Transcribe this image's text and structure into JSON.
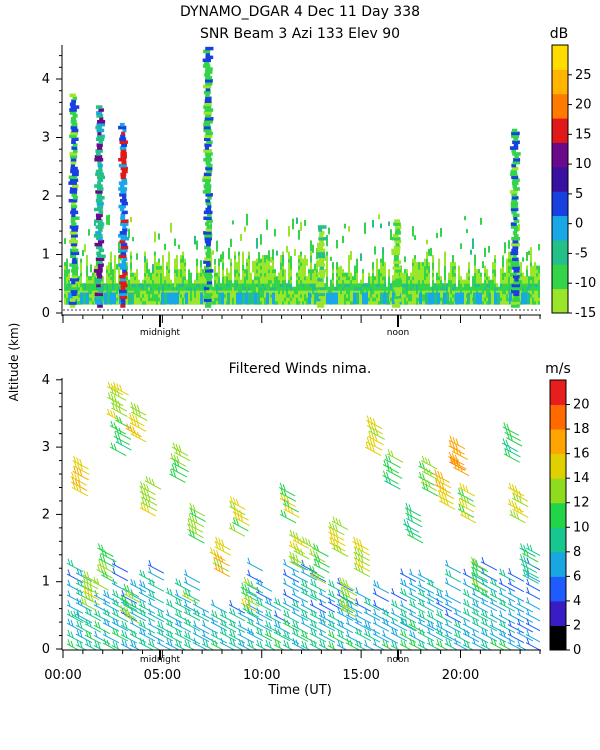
{
  "header": {
    "line1": "DYNAMO_DGAR   4 Dec 11 Day 338",
    "line2": "SNR Beam 3 Azi 133 Elev 90"
  },
  "shared": {
    "ylabel": "Altitude (km)",
    "xlabel": "Time (UT)",
    "marker_midnight": "midnight",
    "marker_noon": "noon"
  },
  "chart_data": [
    {
      "type": "heatmap",
      "title": "SNR Beam 3 Azi 133 Elev 90",
      "xlabel": "",
      "ylabel": "Altitude (km)",
      "xlim_hours": [
        0,
        24
      ],
      "ylim_km": [
        0,
        4.6
      ],
      "y_ticks": [
        "0",
        "1",
        "2",
        "3",
        "4"
      ],
      "colorbar": {
        "unit": "dB",
        "tick_labels": [
          "25",
          "20",
          "15",
          "10",
          "5",
          "0",
          "-5",
          "-10",
          "-15"
        ],
        "range": [
          -15,
          30
        ],
        "colors": [
          "#9ae62a",
          "#33d44a",
          "#25c08a",
          "#18a8e8",
          "#1840e0",
          "#3a10a0",
          "#6a0a8a",
          "#e01818",
          "#ff7a00",
          "#ffb400",
          "#ffdc00"
        ]
      },
      "background_layer": {
        "top_km": 0.7,
        "snr_db": -10
      },
      "columns": [
        {
          "time_h": 0.55,
          "top_km": 3.7,
          "snr_db": 5
        },
        {
          "time_h": 1.85,
          "top_km": 3.5,
          "snr_db": 10
        },
        {
          "time_h": 3.05,
          "top_km": 3.2,
          "snr_db": 15
        },
        {
          "time_h": 7.3,
          "top_km": 4.5,
          "snr_db": 5
        },
        {
          "time_h": 13.0,
          "top_km": 1.5,
          "snr_db": -5
        },
        {
          "time_h": 16.8,
          "top_km": 1.6,
          "snr_db": -10
        },
        {
          "time_h": 22.75,
          "top_km": 3.1,
          "snr_db": 5
        }
      ]
    },
    {
      "type": "scatter",
      "title": "Filtered Winds nima.",
      "xlabel": "Time (UT)",
      "ylabel": "Altitude (km)",
      "xlim_hours": [
        0,
        24
      ],
      "ylim_km": [
        0,
        4.1
      ],
      "x_ticks": [
        "00:00",
        "05:00",
        "10:00",
        "15:00",
        "20:00"
      ],
      "y_ticks": [
        "0",
        "1",
        "2",
        "3",
        "4"
      ],
      "colorbar": {
        "unit": "m/s",
        "tick_labels": [
          "20",
          "18",
          "16",
          "14",
          "12",
          "10",
          "8",
          "6",
          "4",
          "2",
          "0"
        ],
        "range": [
          0,
          22
        ],
        "colors": [
          "#000000",
          "#3a1cc4",
          "#1f5cff",
          "#1aa6e0",
          "#18c690",
          "#22d447",
          "#8fdb1e",
          "#e0d000",
          "#ffa400",
          "#ff6a00",
          "#e81d1d"
        ]
      },
      "wind_barbs": [
        {
          "time_h": 0.5,
          "alt_km": 0.5,
          "speed_ms": 9,
          "dir_deg": 240
        },
        {
          "time_h": 1.5,
          "alt_km": 1.0,
          "speed_ms": 12,
          "dir_deg": 240
        },
        {
          "time_h": 2.5,
          "alt_km": 3.9,
          "speed_ms": 15,
          "dir_deg": 250
        },
        {
          "time_h": 6.0,
          "alt_km": 0.8,
          "speed_ms": 12,
          "dir_deg": 240
        },
        {
          "time_h": 12.0,
          "alt_km": 1.6,
          "speed_ms": 13,
          "dir_deg": 250
        },
        {
          "time_h": 17.0,
          "alt_km": 0.4,
          "speed_ms": 8,
          "dir_deg": 240
        },
        {
          "time_h": 19.5,
          "alt_km": 2.8,
          "speed_ms": 16,
          "dir_deg": 250
        },
        {
          "time_h": 23.3,
          "alt_km": 1.5,
          "speed_ms": 9,
          "dir_deg": 240
        }
      ]
    }
  ]
}
